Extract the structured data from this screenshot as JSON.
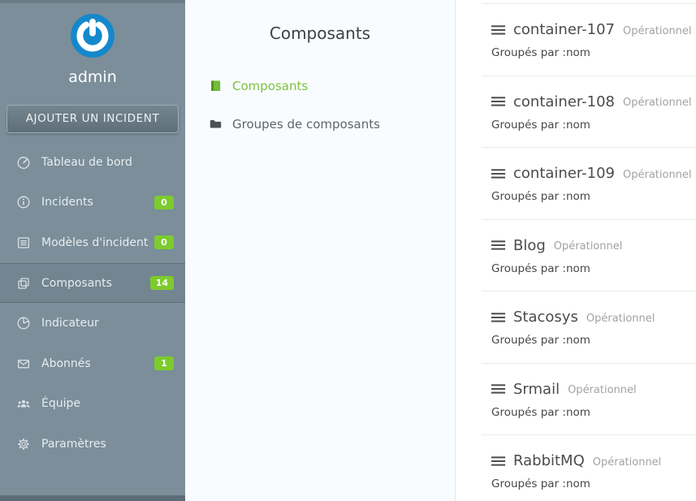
{
  "colors": {
    "sidebar_bg": "#7b8e9a",
    "sidebar_dark": "#5d6d78",
    "accent_green": "#7dcb2d",
    "green_text": "#7cc144",
    "brand_blue": "#1588cb"
  },
  "sidebar": {
    "username": "admin",
    "add_incident_label": "AJOUTER UN INCIDENT",
    "items": [
      {
        "key": "dashboard",
        "label": "Tableau de bord",
        "icon": "dashboard-icon",
        "badge": null,
        "active": false
      },
      {
        "key": "incidents",
        "label": "Incidents",
        "icon": "info-icon",
        "badge": "0",
        "active": false
      },
      {
        "key": "incident-templates",
        "label": "Modèles d'incident",
        "icon": "template-icon",
        "badge": "0",
        "active": false
      },
      {
        "key": "components",
        "label": "Composants",
        "icon": "components-icon",
        "badge": "14",
        "active": true
      },
      {
        "key": "metrics",
        "label": "Indicateur",
        "icon": "metrics-icon",
        "badge": null,
        "active": false
      },
      {
        "key": "subscribers",
        "label": "Abonnés",
        "icon": "subscribers-icon",
        "badge": "1",
        "active": false
      },
      {
        "key": "team",
        "label": "Équipe",
        "icon": "team-icon",
        "badge": null,
        "active": false
      },
      {
        "key": "settings",
        "label": "Paramètres",
        "icon": "settings-icon",
        "badge": null,
        "active": false
      }
    ]
  },
  "subnav": {
    "title": "Composants",
    "items": [
      {
        "key": "components",
        "label": "Composants",
        "icon": "book-icon",
        "active": true
      },
      {
        "key": "component-groups",
        "label": "Groupes de composants",
        "icon": "folder-icon",
        "active": false
      }
    ]
  },
  "components": {
    "grouped_by_label": "Groupés par :nom",
    "items": [
      {
        "name": "container-107",
        "status": "Opérationnel"
      },
      {
        "name": "container-108",
        "status": "Opérationnel"
      },
      {
        "name": "container-109",
        "status": "Opérationnel"
      },
      {
        "name": "Blog",
        "status": "Opérationnel"
      },
      {
        "name": "Stacosys",
        "status": "Opérationnel"
      },
      {
        "name": "Srmail",
        "status": "Opérationnel"
      },
      {
        "name": "RabbitMQ",
        "status": "Opérationnel"
      }
    ]
  }
}
